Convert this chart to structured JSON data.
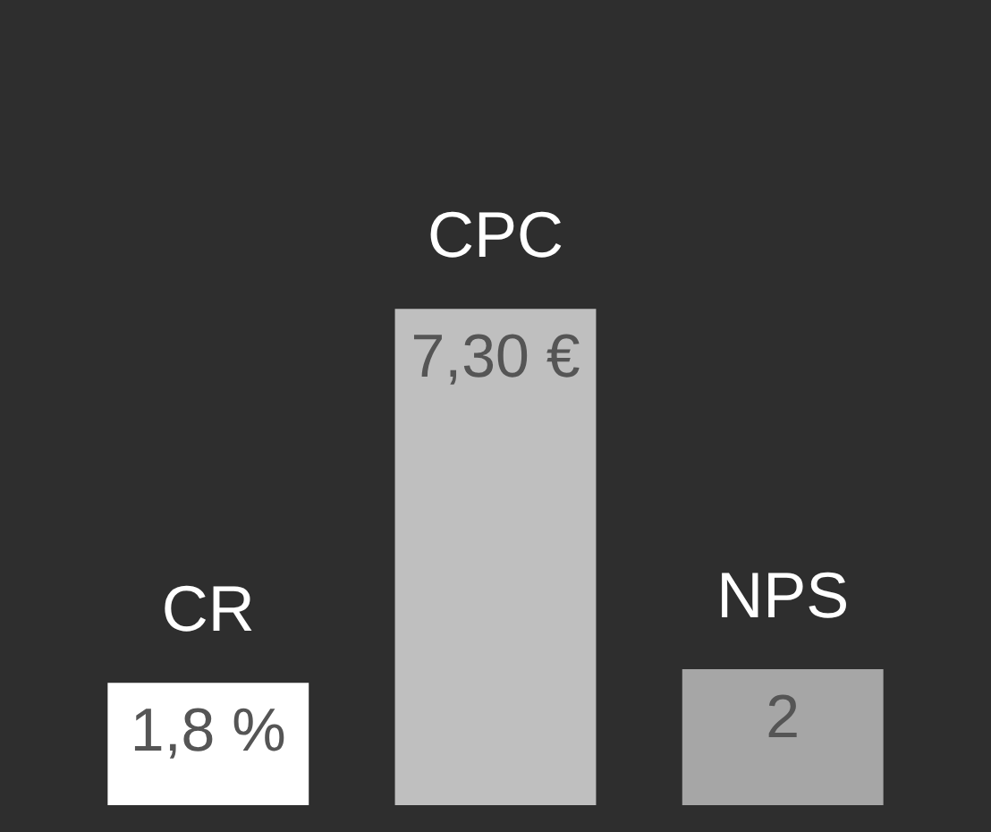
{
  "chart_data": {
    "type": "bar",
    "categories": [
      "CR",
      "CPC",
      "NPS"
    ],
    "values": [
      1.8,
      7.3,
      2
    ],
    "colors": [
      "#ffffff",
      "#bfbfbf",
      "#a6a6a6"
    ],
    "value_labels": [
      "1,8 %",
      "7,30 €",
      "2"
    ]
  }
}
